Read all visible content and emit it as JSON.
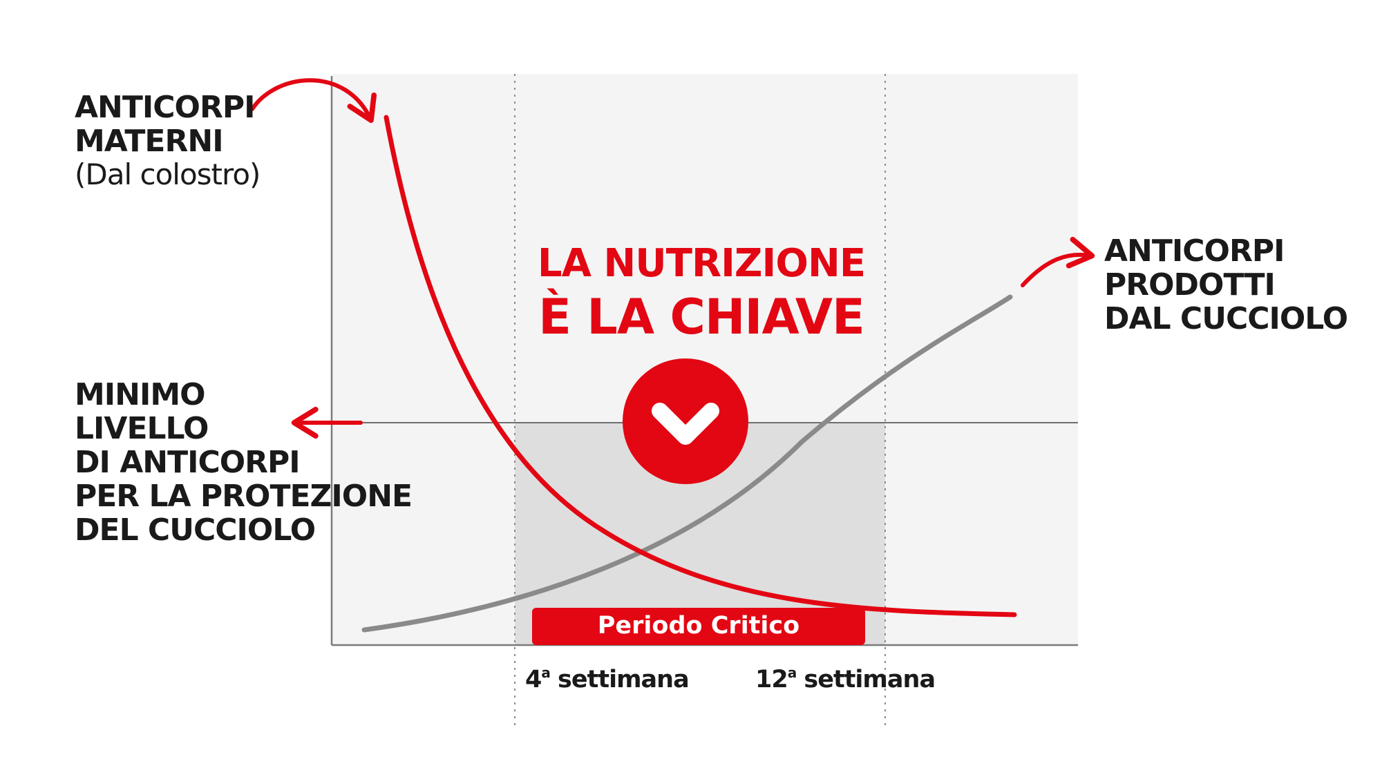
{
  "labels": {
    "maternal": {
      "line1": "ANTICORPI",
      "line2": "MATERNI",
      "line3": "(Dal colostro)"
    },
    "puppy": {
      "line1": "ANTICORPI",
      "line2": "PRODOTTI",
      "line3": "DAL CUCCIOLO"
    },
    "threshold": {
      "line1": "MINIMO",
      "line2": "LIVELLO",
      "line3": "DI ANTICORPI",
      "line4": "PER LA PROTEZIONE",
      "line5": "DEL CUCCIOLO"
    }
  },
  "headline": {
    "line1": "LA NUTRIZIONE",
    "line2": "È LA CHIAVE"
  },
  "badge": "Periodo Critico",
  "ticks": {
    "week4": {
      "number": "4",
      "sup": "a",
      "text": " settimana"
    },
    "week12": {
      "number": "12",
      "sup": "a",
      "text": " settimana"
    }
  },
  "icons": {
    "center": "chevron-down-icon"
  },
  "colors": {
    "accent": "#e30613",
    "grey_curve": "#8a8a8a",
    "panel": "#f4f4f4",
    "critical_zone": "#dedede",
    "text": "#1a1a1a"
  }
}
